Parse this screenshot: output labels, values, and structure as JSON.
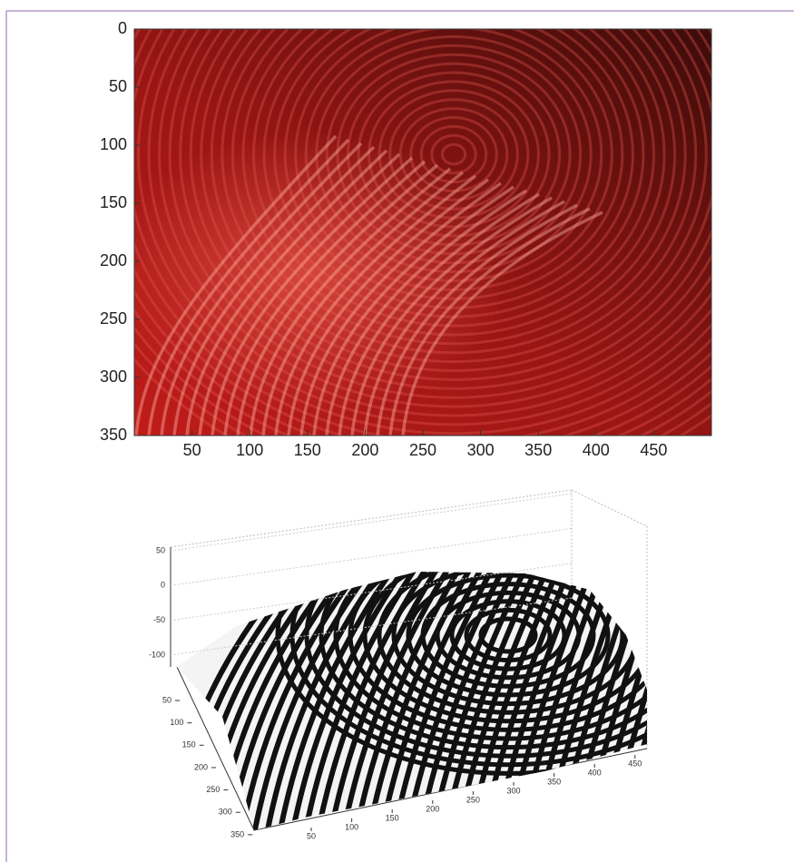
{
  "image_plot": {
    "xlim": [
      0,
      500
    ],
    "ylim": [
      0,
      350
    ],
    "xticks": [
      50,
      100,
      150,
      200,
      250,
      300,
      350,
      400,
      450
    ],
    "yticks": [
      0,
      50,
      100,
      150,
      200,
      250,
      300,
      350
    ]
  },
  "surface_plot": {
    "xticks": [
      50,
      100,
      150,
      200,
      250,
      300,
      350,
      400,
      450
    ],
    "yticks": [
      50,
      100,
      150,
      200,
      250,
      300,
      350
    ],
    "zticks": [
      50,
      0,
      -50,
      -100
    ]
  }
}
